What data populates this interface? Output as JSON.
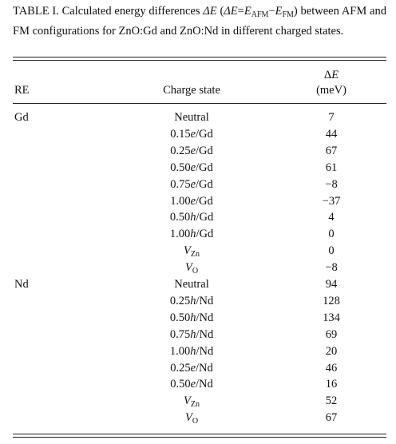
{
  "caption": [
    "TABLE I. Calculated energy differences ",
    "ΔE",
    " (",
    "ΔE",
    "=",
    "E",
    "AFM",
    "−",
    "E",
    "FM",
    ") between AFM and FM configurations for ZnO:Gd and ZnO:Nd in different charged states."
  ],
  "table": {
    "header": {
      "re": "RE",
      "charge": "Charge state",
      "delta": [
        "Δ",
        "E"
      ],
      "unit": "(meV)"
    },
    "rows": [
      {
        "re": "Gd",
        "charge": "Neutral",
        "value": "7"
      },
      {
        "re": null,
        "charge": "0.15e/Gd",
        "value": "44"
      },
      {
        "re": null,
        "charge": "0.25e/Gd",
        "value": "67"
      },
      {
        "re": null,
        "charge": "0.50e/Gd",
        "value": "61"
      },
      {
        "re": null,
        "charge": "0.75e/Gd",
        "value": "−8"
      },
      {
        "re": null,
        "charge": "1.00e/Gd",
        "value": "−37"
      },
      {
        "re": null,
        "charge": "0.50h/Gd",
        "value": "4"
      },
      {
        "re": null,
        "charge": "1.00h/Gd",
        "value": "0"
      },
      {
        "re": null,
        "charge": {
          "base": "V",
          "sub": "Zn"
        },
        "value": "0"
      },
      {
        "re": null,
        "charge": {
          "base": "V",
          "sub": "O"
        },
        "value": "−8"
      },
      {
        "re": "Nd",
        "charge": "Neutral",
        "value": "94"
      },
      {
        "re": null,
        "charge": "0.25h/Nd",
        "value": "128"
      },
      {
        "re": null,
        "charge": "0.50h/Nd",
        "value": "134"
      },
      {
        "re": null,
        "charge": "0.75h/Nd",
        "value": "69"
      },
      {
        "re": null,
        "charge": "1.00h/Nd",
        "value": "20"
      },
      {
        "re": null,
        "charge": "0.25e/Nd",
        "value": "46"
      },
      {
        "re": null,
        "charge": "0.50e/Nd",
        "value": "16"
      },
      {
        "re": null,
        "charge": {
          "base": "V",
          "sub": "Zn"
        },
        "value": "52"
      },
      {
        "re": null,
        "charge": {
          "base": "V",
          "sub": "O"
        },
        "value": "67"
      }
    ]
  }
}
